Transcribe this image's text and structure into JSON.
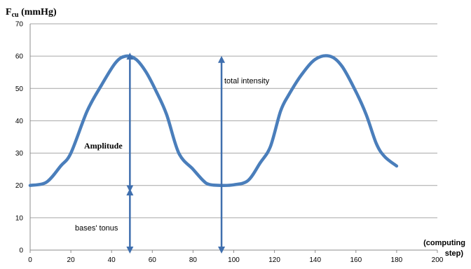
{
  "chart_data": {
    "type": "line",
    "ylabel_main": "F",
    "ylabel_sub": "cu",
    "ylabel_unit": " (mmHg)",
    "xlabel_line1": "(computing",
    "xlabel_line2": "step)",
    "xlim": [
      0,
      200
    ],
    "ylim": [
      0,
      70
    ],
    "x_ticks": [
      "0",
      "20",
      "40",
      "60",
      "80",
      "100",
      "120",
      "140",
      "160",
      "180",
      "200"
    ],
    "y_ticks": [
      "0",
      "10",
      "20",
      "30",
      "40",
      "50",
      "60",
      "70"
    ],
    "grid": "horizontal",
    "line_color": "#4a7ebb",
    "arrow_color": "#3f6fae",
    "series": [
      {
        "x": [
          0,
          8,
          15,
          20,
          28,
          35,
          42,
          47,
          52,
          57,
          62,
          67,
          73,
          80,
          85,
          88,
          94,
          100,
          107,
          113,
          118,
          123,
          127,
          133,
          140,
          147,
          153,
          160,
          165,
          170,
          174,
          180
        ],
        "values": [
          20,
          21,
          26,
          30,
          43,
          51,
          58,
          60,
          59,
          55,
          49,
          42,
          30,
          25,
          21.5,
          20.3,
          20,
          20.2,
          21.5,
          27,
          32,
          43,
          48,
          54,
          59,
          60,
          57,
          49,
          42,
          33,
          29,
          26
        ]
      }
    ],
    "annotations": {
      "total_intensity": "total intensity",
      "amplitude": "Amplitude",
      "bases_tonus": "bases' tonus"
    },
    "arrows": [
      {
        "name": "amplitude-arrow",
        "x": 49,
        "y_from": 19,
        "y_to": 60
      },
      {
        "name": "bases-tonus-arrow",
        "x": 49,
        "y_from": 0,
        "y_to": 18
      },
      {
        "name": "total-intensity-arrow",
        "x": 94,
        "y_from": 0,
        "y_to": 59
      }
    ]
  }
}
